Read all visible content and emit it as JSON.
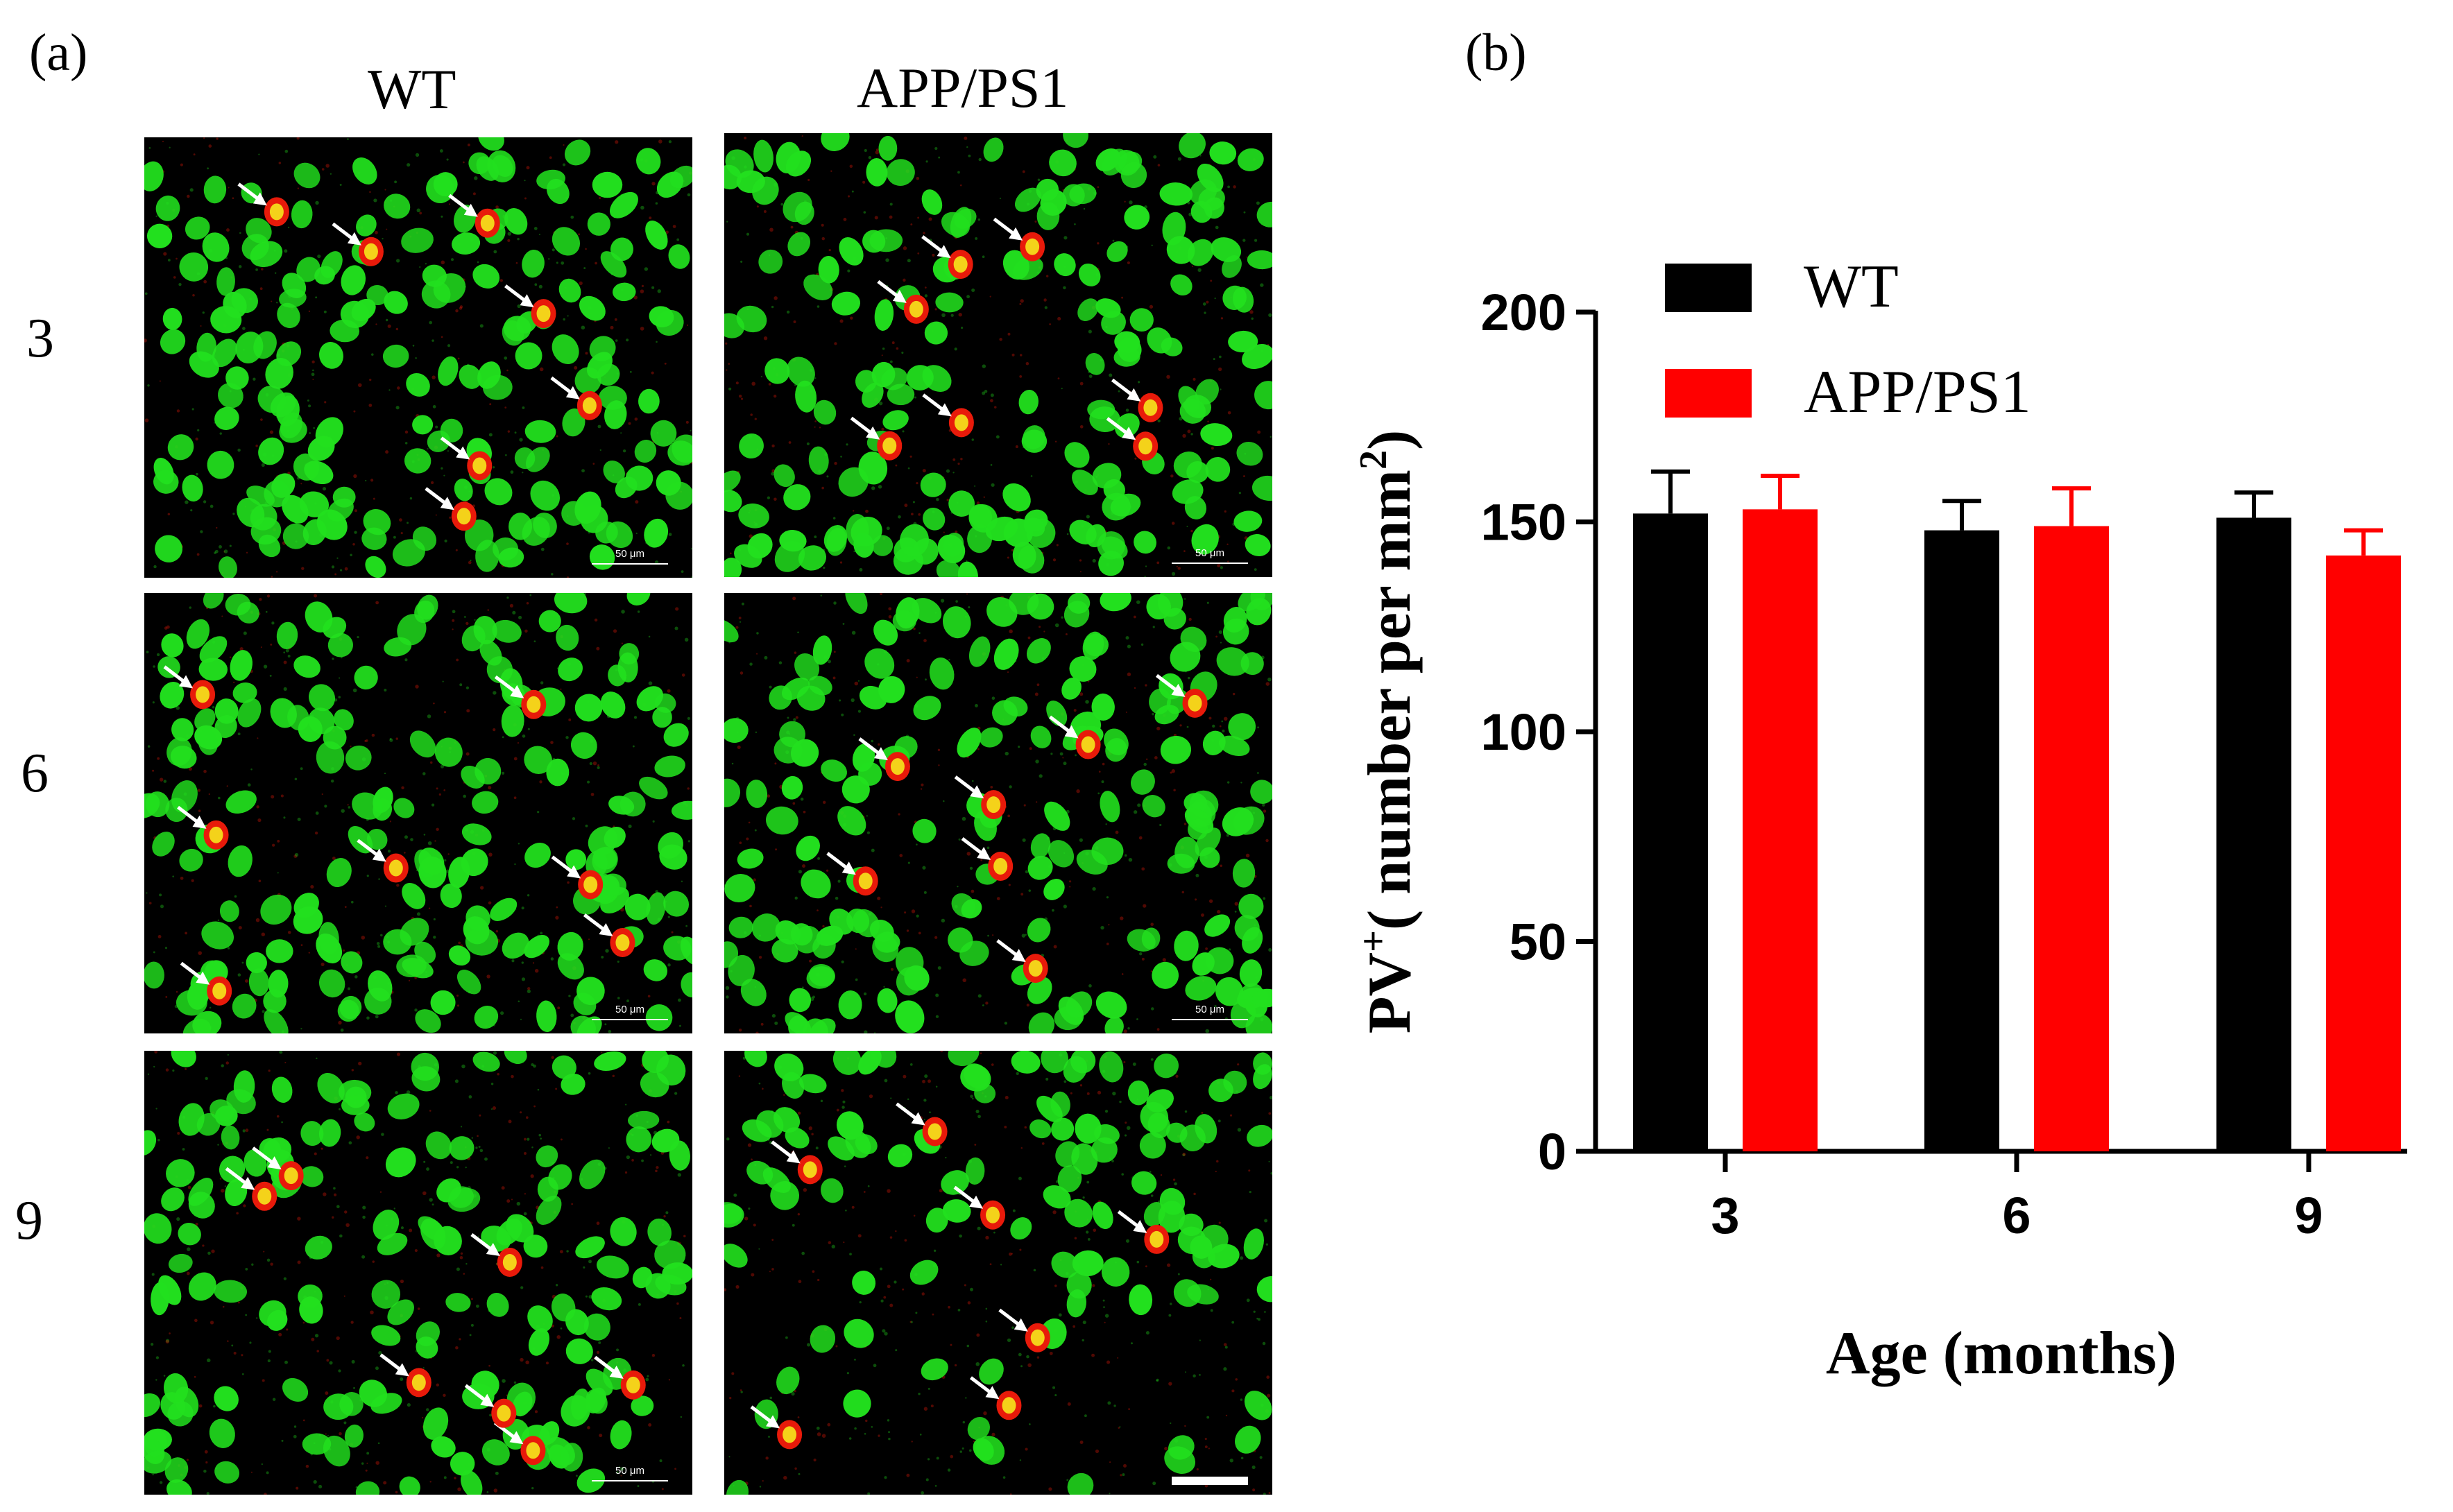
{
  "panel_a": {
    "letter": "(a)",
    "columns": [
      "WT",
      "APP/PS1"
    ],
    "rows": [
      "3",
      "6",
      "9"
    ],
    "scale_bar_label": "50 μm"
  },
  "panel_b": {
    "letter": "(b)"
  },
  "colors": {
    "wt": "#000000",
    "app": "#ff0000",
    "cell_green": "#22e01e",
    "cell_red": "#e81a0a",
    "cell_yellow": "#f4d21a",
    "arrow": "#ffffff"
  },
  "chart_data": {
    "type": "bar",
    "categories": [
      "3",
      "6",
      "9"
    ],
    "series": [
      {
        "name": "WT",
        "values": [
          152,
          148,
          151
        ],
        "errors": [
          10,
          7,
          6
        ]
      },
      {
        "name": "APP/PS1",
        "values": [
          153,
          149,
          142
        ],
        "errors": [
          8,
          9,
          6
        ]
      }
    ],
    "xlabel": "Age (months)",
    "ylabel_main": "PV",
    "ylabel_sup": "+",
    "ylabel_rest": "( number per mm",
    "ylabel_unit_sup": "2",
    "ylabel_close": ")",
    "ylim": [
      0,
      200
    ],
    "yticks": [
      0,
      50,
      100,
      150,
      200
    ],
    "legend_position": "top-left"
  }
}
